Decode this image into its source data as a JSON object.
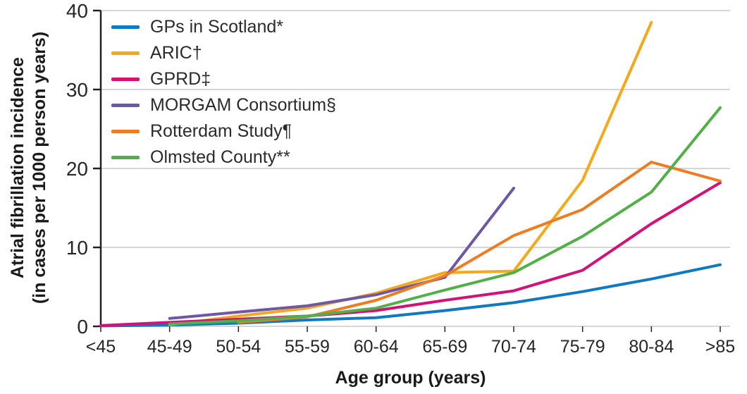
{
  "figure": {
    "ylabel_line1": "Atrial fibrillation incidence",
    "ylabel_line2": "(in cases per 1000 person years)",
    "xlabel": "Age group (years)"
  },
  "chart_data": {
    "type": "line",
    "title": "",
    "xlabel": "Age group (years)",
    "ylabel": "Atrial fibrillation incidence (in cases per 1000 person years)",
    "categories": [
      "<45",
      "45-49",
      "50-54",
      "55-59",
      "60-64",
      "65-69",
      "70-74",
      "75-79",
      "80-84",
      ">85"
    ],
    "ylim": [
      0,
      40
    ],
    "yticks": [
      0,
      10,
      20,
      30,
      40
    ],
    "grid": true,
    "legend_position": "top-left",
    "axis_color": "#222222",
    "gridline_color": "#c9c9c9",
    "series": [
      {
        "name": "GPs in Scotland*",
        "color": "#0f7ac0",
        "values": [
          0.05,
          0.15,
          0.4,
          0.8,
          1.1,
          2.0,
          3.0,
          4.4,
          6.0,
          7.8
        ]
      },
      {
        "name": "ARIC†",
        "color": "#f6a81c",
        "values": [
          null,
          0.2,
          1.3,
          2.3,
          4.2,
          6.8,
          7.0,
          18.5,
          38.5,
          null
        ]
      },
      {
        "name": "GPRD‡",
        "color": "#d11277",
        "values": [
          0.1,
          0.5,
          0.9,
          1.3,
          2.0,
          3.3,
          4.5,
          7.1,
          13.0,
          18.2
        ]
      },
      {
        "name": "MORGAM Consortium§",
        "color": "#6e58a6",
        "values": [
          null,
          1.0,
          1.8,
          2.6,
          4.0,
          6.2,
          17.5,
          null,
          null,
          null
        ]
      },
      {
        "name": "Rotterdam Study¶",
        "color": "#ee7c23",
        "values": [
          null,
          null,
          0.5,
          1.2,
          3.3,
          6.4,
          11.5,
          14.8,
          20.8,
          18.4
        ]
      },
      {
        "name": "Olmsted County**",
        "color": "#53b049",
        "values": [
          null,
          0.3,
          0.7,
          1.3,
          2.3,
          4.6,
          6.8,
          11.4,
          17.0,
          27.7
        ]
      }
    ]
  }
}
